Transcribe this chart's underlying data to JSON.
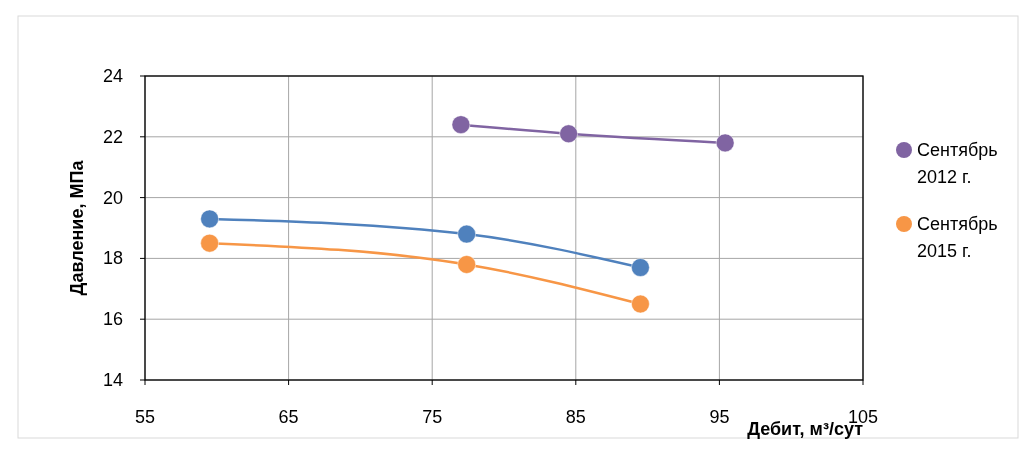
{
  "chart_data": {
    "type": "line",
    "xlabel": "Дебит, м³/сут",
    "ylabel": "Давление, МПа",
    "xlim": [
      55,
      105
    ],
    "xticks": [
      55,
      65,
      75,
      85,
      95,
      105
    ],
    "ylim": [
      14,
      24
    ],
    "yticks": [
      14,
      16,
      18,
      20,
      22,
      24
    ],
    "grid": true,
    "legend": "right",
    "marker": "circle",
    "line_style": "solid",
    "series": [
      {
        "name": "Сентябрь 2012 г.",
        "color": "#8064a2",
        "x": [
          77.0,
          84.5,
          95.4
        ],
        "values": [
          22.4,
          22.1,
          21.8
        ]
      },
      {
        "color": "#4f81bd",
        "x": [
          59.5,
          77.4,
          89.5
        ],
        "values": [
          19.3,
          18.8,
          17.7
        ]
      },
      {
        "name": "Сентябрь 2015 г.",
        "color": "#f79646",
        "x": [
          59.5,
          77.4,
          89.5
        ],
        "values": [
          18.5,
          17.8,
          16.5
        ]
      }
    ]
  }
}
